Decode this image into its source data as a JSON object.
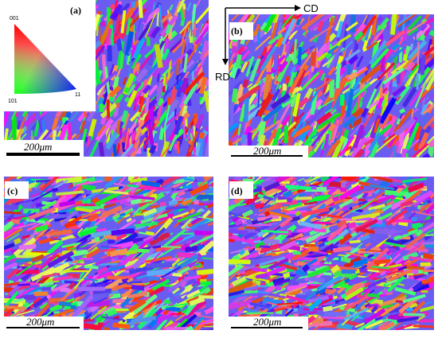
{
  "panels": [
    {
      "label": "(a)",
      "scale_bar": "200μm"
    },
    {
      "label": "(b)",
      "scale_bar": "200μm"
    },
    {
      "label": "(c)",
      "scale_bar": "200μm"
    },
    {
      "label": "(d)",
      "scale_bar": "200μm"
    }
  ],
  "legend": {
    "corners": [
      "001",
      "101",
      "11"
    ]
  },
  "axes": {
    "x": "CD",
    "y": "RD"
  }
}
